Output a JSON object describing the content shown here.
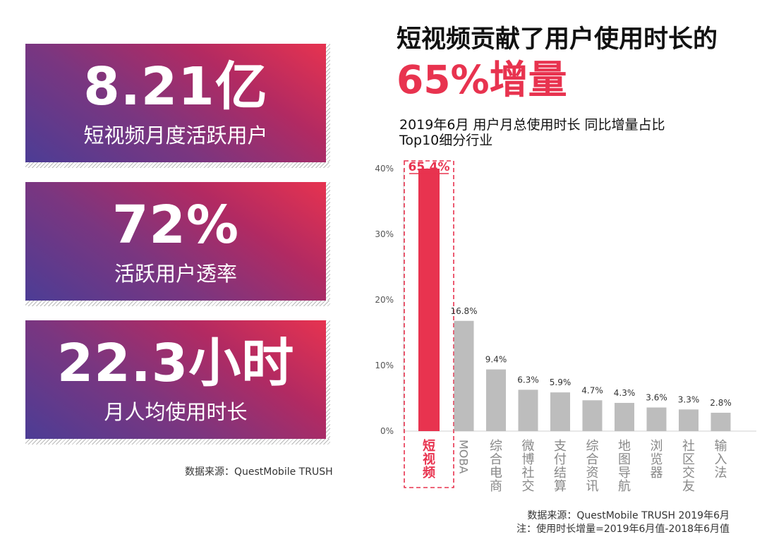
{
  "stats": [
    {
      "value": "8.21亿",
      "label": "短视频月度活跃用户"
    },
    {
      "value": "72%",
      "label": "活跃用户透率"
    },
    {
      "value": "22.3小时",
      "label": "月人均使用时长"
    }
  ],
  "left_source": "数据来源：QuestMobile TRUSH",
  "headline": "短视频贡献了用户使用时长的",
  "headline_accent": "65%增量",
  "chart_title_line1": "2019年6月 用户月总使用时长 同比增量占比",
  "chart_title_line2": "Top10细分行业",
  "footnote_line1": "数据来源：QuestMobile TRUSH 2019年6月",
  "footnote_line2": "注：使用时长增量=2019年6月值-2018年6月值",
  "colors": {
    "accent": "#e8334f",
    "bar": "#bdbdbd",
    "gradient_end": "#4a3d96"
  },
  "chart_data": {
    "type": "bar",
    "categories": [
      "短视频",
      "MOBA",
      "综合电商",
      "微博社交",
      "支付结算",
      "综合资讯",
      "地图导航",
      "浏览器",
      "社区交友",
      "输入法"
    ],
    "values": [
      65.4,
      16.8,
      9.4,
      6.3,
      5.9,
      4.7,
      4.3,
      3.6,
      3.3,
      2.8
    ],
    "value_labels": [
      "65.4%",
      "16.8%",
      "9.4%",
      "6.3%",
      "5.9%",
      "4.7%",
      "4.3%",
      "3.6%",
      "3.3%",
      "2.8%"
    ],
    "yticks": [
      "0%",
      "10%",
      "20%",
      "30%",
      "40%"
    ],
    "ylim": [
      0,
      40
    ],
    "highlight_index": 0
  }
}
